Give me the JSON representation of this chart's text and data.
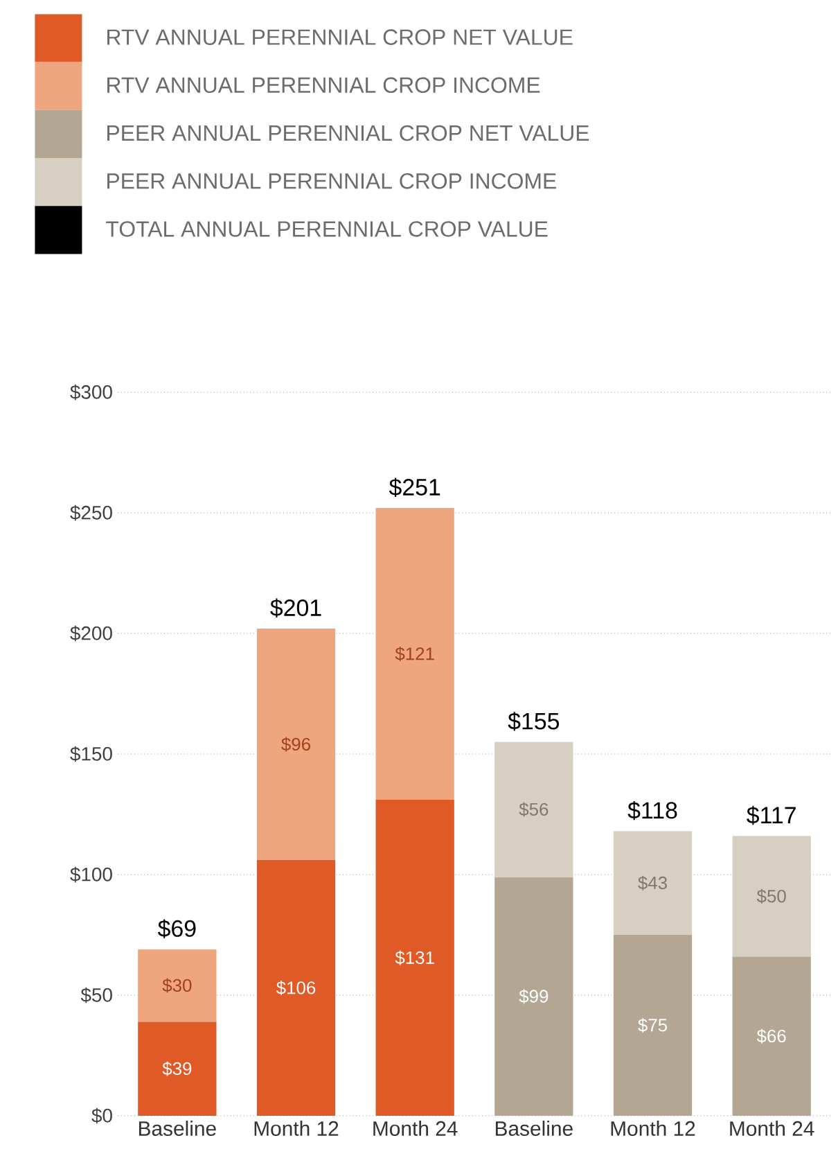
{
  "chart_data": {
    "type": "bar",
    "stacked": true,
    "categories": [
      "Baseline",
      "Month 12",
      "Month 24",
      "Baseline",
      "Month 12",
      "Month 24"
    ],
    "series": [
      {
        "name": "RTV ANNUAL PERENNIAL CROP NET VALUE",
        "color": "#e05a28",
        "values": [
          39,
          106,
          131,
          null,
          null,
          null
        ],
        "value_labels": [
          "$39",
          "$106",
          "$131",
          null,
          null,
          null
        ]
      },
      {
        "name": "RTV ANNUAL PERENNIAL CROP INCOME",
        "color": "#efa67e",
        "values": [
          30,
          96,
          121,
          null,
          null,
          null
        ],
        "value_labels": [
          "$30",
          "$96",
          "$121",
          null,
          null,
          null
        ]
      },
      {
        "name": "PEER ANNUAL PERENNIAL CROP NET VALUE",
        "color": "#b3a794",
        "values": [
          null,
          null,
          null,
          99,
          75,
          66
        ],
        "value_labels": [
          null,
          null,
          null,
          "$99",
          "$75",
          "$66"
        ]
      },
      {
        "name": "PEER ANNUAL PERENNIAL CROP INCOME",
        "color": "#d8cfc3",
        "values": [
          null,
          null,
          null,
          56,
          43,
          50
        ],
        "value_labels": [
          null,
          null,
          null,
          "$56",
          "$43",
          "$50"
        ]
      },
      {
        "name": "TOTAL ANNUAL PERENNIAL CROP VALUE",
        "color": "#000000",
        "values": [
          null,
          null,
          null,
          null,
          null,
          null
        ]
      }
    ],
    "totals": [
      "$69",
      "$201",
      "$251",
      "$155",
      "$118",
      "$117"
    ],
    "ylim": [
      0,
      300
    ],
    "yticks": [
      {
        "value": 0,
        "label": "$0"
      },
      {
        "value": 50,
        "label": "$50"
      },
      {
        "value": 100,
        "label": "$100"
      },
      {
        "value": 150,
        "label": "$150"
      },
      {
        "value": 200,
        "label": "$200"
      },
      {
        "value": 250,
        "label": "$250"
      },
      {
        "value": 300,
        "label": "$300"
      }
    ],
    "grid": "y",
    "legend": "top left"
  }
}
